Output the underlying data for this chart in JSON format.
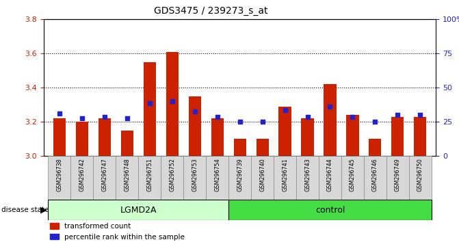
{
  "title": "GDS3475 / 239273_s_at",
  "samples": [
    "GSM296738",
    "GSM296742",
    "GSM296747",
    "GSM296748",
    "GSM296751",
    "GSM296752",
    "GSM296753",
    "GSM296754",
    "GSM296739",
    "GSM296740",
    "GSM296741",
    "GSM296743",
    "GSM296744",
    "GSM296745",
    "GSM296746",
    "GSM296749",
    "GSM296750"
  ],
  "bar_values": [
    3.22,
    3.2,
    3.22,
    3.15,
    3.55,
    3.61,
    3.35,
    3.22,
    3.1,
    3.1,
    3.29,
    3.22,
    3.42,
    3.24,
    3.1,
    3.23,
    3.23
  ],
  "dot_values": [
    3.25,
    3.22,
    3.23,
    3.22,
    3.31,
    3.32,
    3.26,
    3.23,
    3.2,
    3.2,
    3.27,
    3.23,
    3.29,
    3.23,
    3.2,
    3.24,
    3.24
  ],
  "bar_color": "#cc2200",
  "dot_color": "#2222cc",
  "groups": [
    {
      "label": "LGMD2A",
      "start": 0,
      "end": 8,
      "color": "#ccffcc"
    },
    {
      "label": "control",
      "start": 8,
      "end": 17,
      "color": "#44dd44"
    }
  ],
  "ylim_left": [
    3.0,
    3.8
  ],
  "ylim_right": [
    0,
    100
  ],
  "yticks_left": [
    3.0,
    3.2,
    3.4,
    3.6,
    3.8
  ],
  "yticks_right": [
    0,
    25,
    50,
    75,
    100
  ],
  "ytick_labels_right": [
    "0",
    "25",
    "50",
    "75",
    "100%"
  ],
  "grid_lines": [
    3.2,
    3.4,
    3.6
  ],
  "base_value": 3.0,
  "xtick_bg": "#d8d8d8",
  "xtick_border": "#888888"
}
